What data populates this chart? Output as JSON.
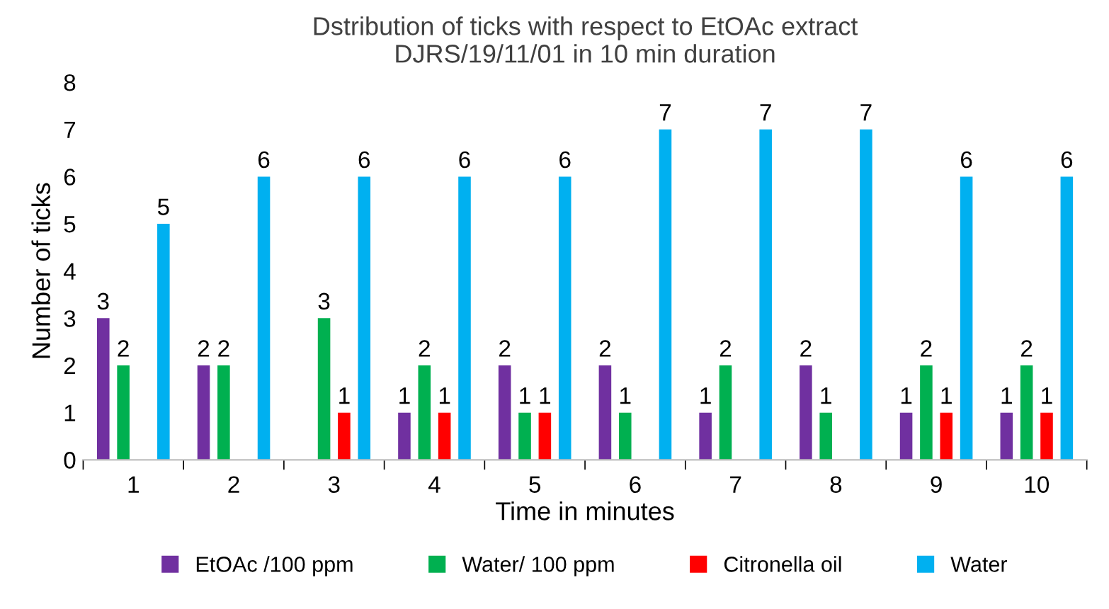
{
  "chart_data": {
    "type": "bar",
    "title": "Dstribution of ticks with respect to EtOAc extract\nDJRS/19/11/01 in 10 min duration",
    "xlabel": "Time in minutes",
    "ylabel": "Number of ticks",
    "categories": [
      "1",
      "2",
      "3",
      "4",
      "5",
      "6",
      "7",
      "8",
      "9",
      "10"
    ],
    "series": [
      {
        "name": "EtOAc /100 ppm",
        "color": "#7030a0",
        "values": [
          3,
          2,
          null,
          1,
          2,
          2,
          1,
          2,
          1,
          1
        ]
      },
      {
        "name": "Water/ 100 ppm",
        "color": "#00b050",
        "values": [
          2,
          2,
          3,
          2,
          1,
          1,
          2,
          1,
          2,
          2
        ]
      },
      {
        "name": "Citronella oil",
        "color": "#ff0000",
        "values": [
          null,
          null,
          1,
          1,
          1,
          null,
          null,
          null,
          1,
          1
        ]
      },
      {
        "name": "Water",
        "color": "#00b0f0",
        "values": [
          5,
          6,
          6,
          6,
          6,
          7,
          7,
          7,
          6,
          6
        ]
      }
    ],
    "ylim": [
      0,
      8
    ],
    "yticks": [
      0,
      1,
      2,
      3,
      4,
      5,
      6,
      7,
      8
    ],
    "grid": false,
    "legend": "bottom",
    "data_labels": true
  }
}
